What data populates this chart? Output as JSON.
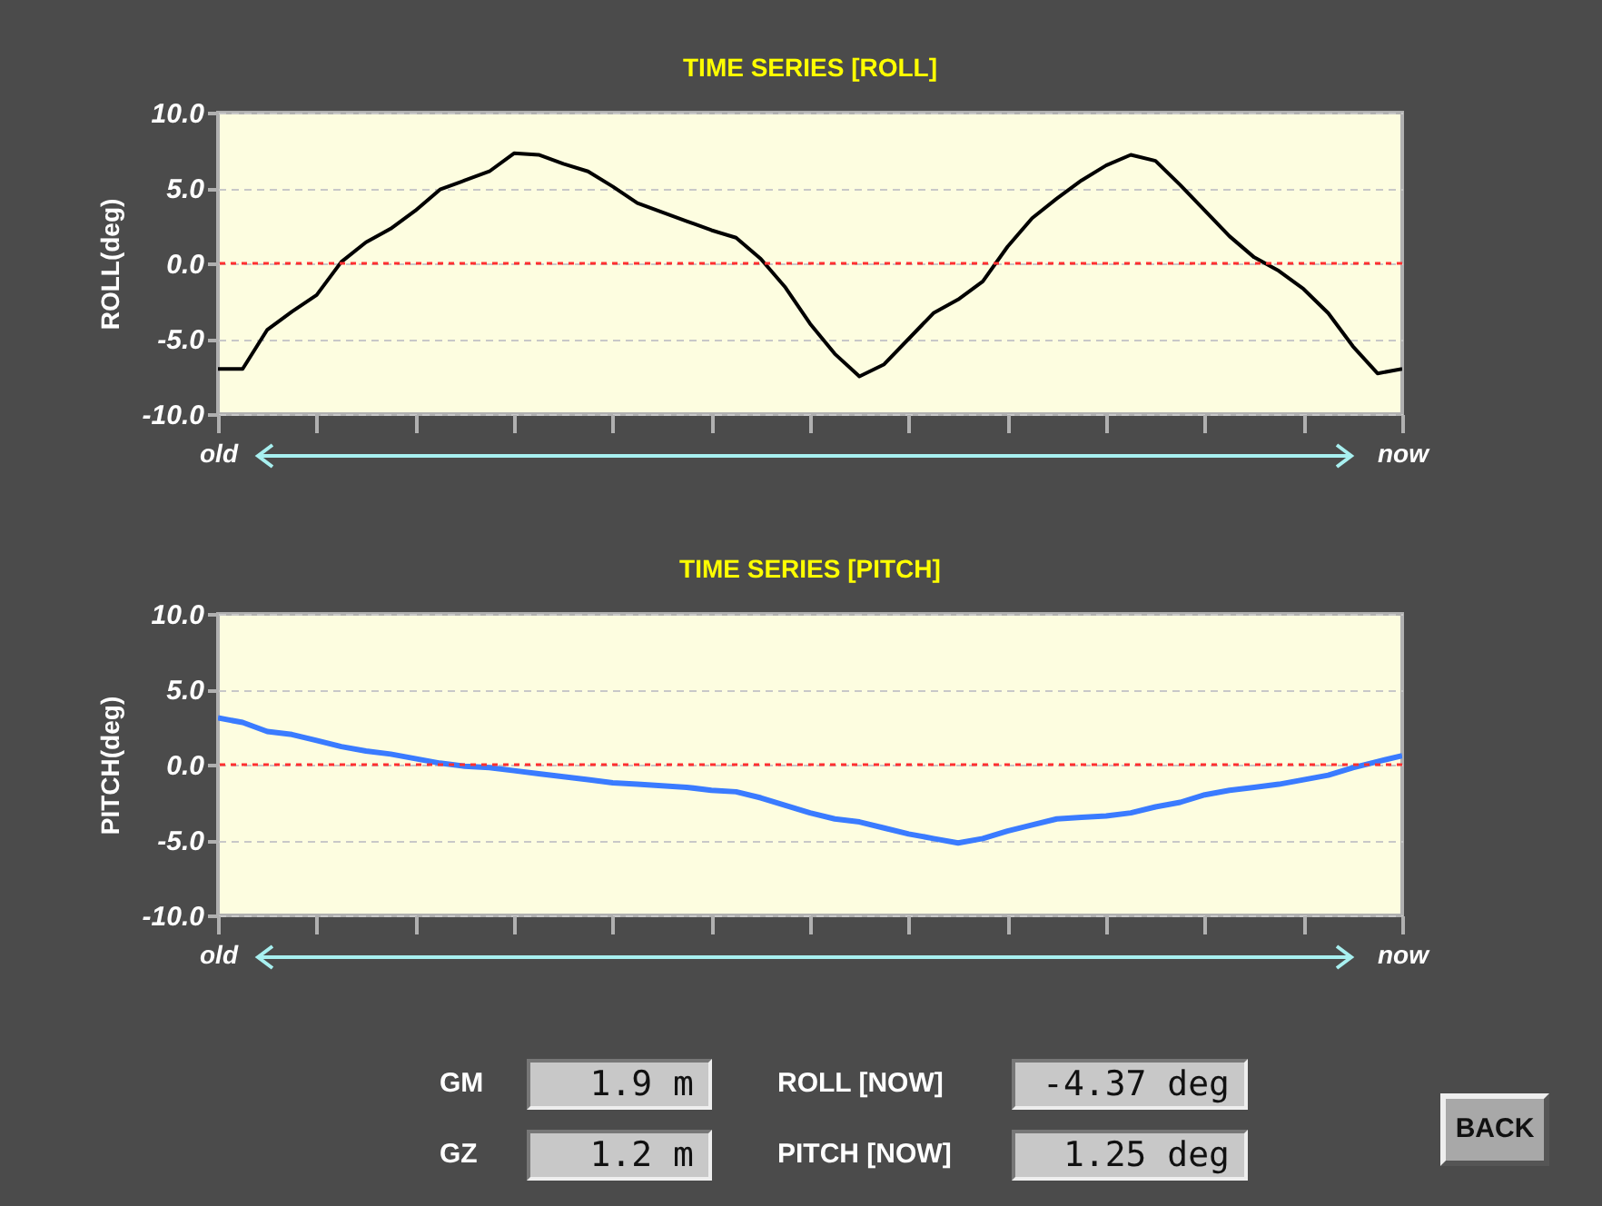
{
  "chart_data": [
    {
      "type": "line",
      "title": "TIME SERIES [ROLL]",
      "ylabel": "ROLL(deg)",
      "ylim": [
        -10,
        10
      ],
      "categories": [
        "old",
        null,
        null,
        null,
        null,
        null,
        null,
        null,
        null,
        null,
        null,
        null,
        null,
        null,
        null,
        null,
        null,
        null,
        null,
        null,
        null,
        null,
        null,
        null,
        null,
        null,
        null,
        null,
        null,
        null,
        null,
        null,
        null,
        null,
        null,
        null,
        null,
        null,
        null,
        null,
        null,
        null,
        null,
        null,
        null,
        null,
        null,
        null,
        "now"
      ],
      "yticks": [
        {
          "value": -10,
          "label": "-10.0"
        },
        {
          "value": -5,
          "label": "-5.0"
        },
        {
          "value": 0,
          "label": "0.0"
        },
        {
          "value": 5,
          "label": "5.0"
        },
        {
          "value": 10,
          "label": "10.0"
        }
      ],
      "grid": "y",
      "ref_lines": [
        {
          "axis": "y",
          "value": 0,
          "color": "#ff3030",
          "line_style": "dashed"
        }
      ],
      "series": [
        {
          "color": "#000000",
          "values": [
            -7.0,
            -7.0,
            -4.4,
            -3.2,
            -2.1,
            0.1,
            1.4,
            2.3,
            3.5,
            4.9,
            5.5,
            6.1,
            7.3,
            7.2,
            6.6,
            6.1,
            5.1,
            4.0,
            3.4,
            2.8,
            2.2,
            1.7,
            0.3,
            -1.6,
            -4.0,
            -6.0,
            -7.5,
            -6.7,
            -5.0,
            -3.3,
            -2.4,
            -1.2,
            1.1,
            3.0,
            4.3,
            5.5,
            6.5,
            7.2,
            6.8,
            5.2,
            3.5,
            1.8,
            0.4,
            -0.5,
            -1.7,
            -3.3,
            -5.5,
            -7.3,
            -7.0
          ]
        }
      ]
    },
    {
      "type": "line",
      "title": "TIME SERIES [PITCH]",
      "ylabel": "PITCH(deg)",
      "ylim": [
        -10,
        10
      ],
      "categories": [
        "old",
        null,
        null,
        null,
        null,
        null,
        null,
        null,
        null,
        null,
        null,
        null,
        null,
        null,
        null,
        null,
        null,
        null,
        null,
        null,
        null,
        null,
        null,
        null,
        null,
        null,
        null,
        null,
        null,
        null,
        null,
        null,
        null,
        null,
        null,
        null,
        null,
        null,
        null,
        null,
        null,
        null,
        null,
        null,
        null,
        null,
        null,
        null,
        "now"
      ],
      "yticks": [
        {
          "value": -10,
          "label": "-10.0"
        },
        {
          "value": -5,
          "label": "-5.0"
        },
        {
          "value": 0,
          "label": "0.0"
        },
        {
          "value": 5,
          "label": "5.0"
        },
        {
          "value": 10,
          "label": "10.0"
        }
      ],
      "grid": "y",
      "ref_lines": [
        {
          "axis": "y",
          "value": 0,
          "color": "#ff3030",
          "line_style": "dashed"
        }
      ],
      "series": [
        {
          "color": "#3a7bff",
          "values": [
            3.1,
            2.8,
            2.2,
            2.0,
            1.6,
            1.2,
            0.9,
            0.7,
            0.4,
            0.1,
            -0.1,
            -0.2,
            -0.4,
            -0.6,
            -0.8,
            -1.0,
            -1.2,
            -1.3,
            -1.4,
            -1.5,
            -1.7,
            -1.8,
            -2.2,
            -2.7,
            -3.2,
            -3.6,
            -3.8,
            -4.2,
            -4.6,
            -4.9,
            -5.2,
            -4.9,
            -4.4,
            -4.0,
            -3.6,
            -3.5,
            -3.4,
            -3.2,
            -2.8,
            -2.5,
            -2.0,
            -1.7,
            -1.5,
            -1.3,
            -1.0,
            -0.7,
            -0.2,
            0.2,
            0.6
          ]
        }
      ]
    },
    {
      "type": "other",
      "annotations": [
        "GM",
        "1.9 m",
        "ROLL [NOW]",
        "-4.37 deg",
        "GZ",
        "1.2 m",
        "PITCH [NOW]",
        "1.25 deg",
        "BACK"
      ]
    }
  ]
}
